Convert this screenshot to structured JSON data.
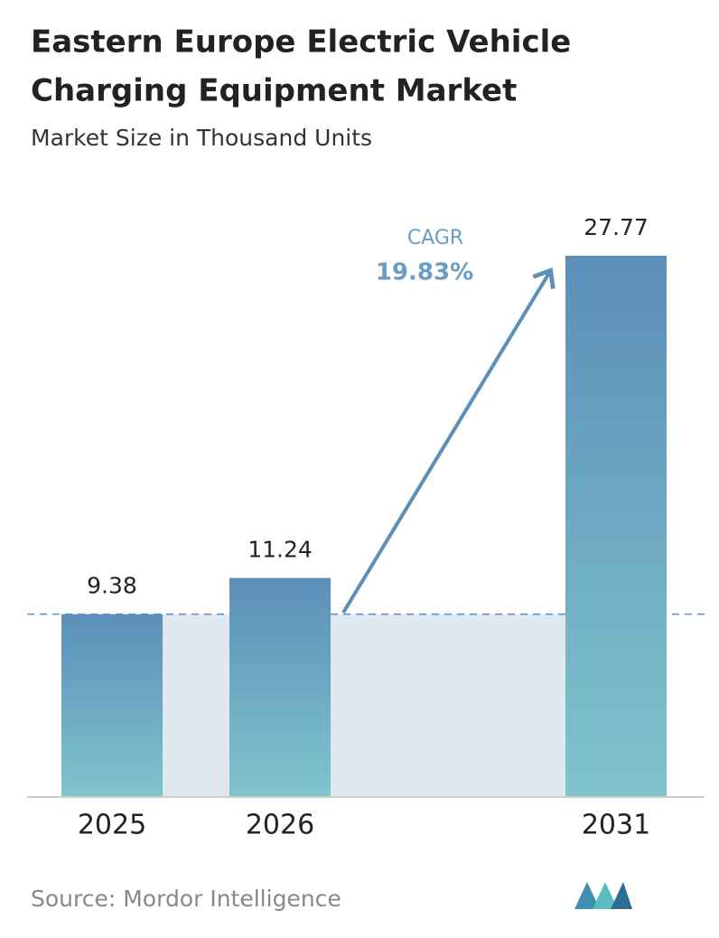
{
  "chart_data": {
    "type": "bar",
    "title": [
      "Eastern Europe Electric Vehicle",
      "Charging Equipment Market"
    ],
    "subtitle": "Market Size in Thousand Units",
    "categories": [
      "2025",
      "2026",
      "2031"
    ],
    "values": [
      9.38,
      11.24,
      27.77
    ],
    "annotation": {
      "label": "CAGR",
      "value": "19.83%"
    },
    "source": "Source:  Mordor Intelligence"
  }
}
